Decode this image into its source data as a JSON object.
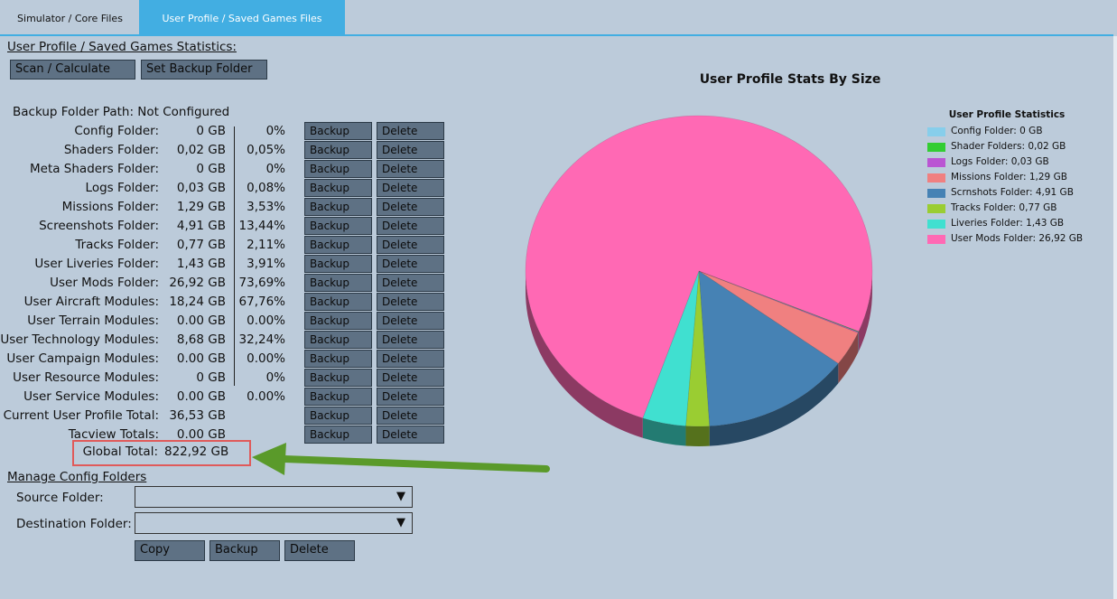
{
  "tabs": [
    {
      "label": "Simulator / Core Files",
      "active": false
    },
    {
      "label": "User Profile / Saved Games Files",
      "active": true
    }
  ],
  "stats_section": {
    "title": "User Profile / Saved Games Statistics:",
    "scan_button": "Scan / Calculate",
    "backup_folder_button": "Set Backup Folder",
    "backup_path": "Backup Folder Path: Not Configured",
    "backup_label": "Backup",
    "delete_label": "Delete",
    "rows": [
      {
        "label": "Config Folder:",
        "size": "0 GB",
        "pct": "0%"
      },
      {
        "label": "Shaders Folder:",
        "size": "0,02 GB",
        "pct": "0,05%"
      },
      {
        "label": "Meta Shaders Folder:",
        "size": "0 GB",
        "pct": "0%"
      },
      {
        "label": "Logs Folder:",
        "size": "0,03 GB",
        "pct": "0,08%"
      },
      {
        "label": "Missions Folder:",
        "size": "1,29 GB",
        "pct": "3,53%"
      },
      {
        "label": "Screenshots Folder:",
        "size": "4,91 GB",
        "pct": "13,44%"
      },
      {
        "label": "Tracks Folder:",
        "size": "0,77 GB",
        "pct": "2,11%"
      },
      {
        "label": "User Liveries Folder:",
        "size": "1,43 GB",
        "pct": "3,91%"
      },
      {
        "label": "User Mods Folder:",
        "size": "26,92 GB",
        "pct": "73,69%"
      },
      {
        "label": "User Aircraft Modules:",
        "size": "18,24 GB",
        "pct": "67,76%"
      },
      {
        "label": "User Terrain Modules:",
        "size": "0.00 GB",
        "pct": "0.00%"
      },
      {
        "label": "User Technology Modules:",
        "size": "8,68 GB",
        "pct": "32,24%"
      },
      {
        "label": "User Campaign Modules:",
        "size": "0.00 GB",
        "pct": "0.00%"
      },
      {
        "label": "User Resource Modules:",
        "size": "0 GB",
        "pct": "0%"
      },
      {
        "label": "User Service Modules:",
        "size": "0.00 GB",
        "pct": "0.00%"
      },
      {
        "label": "Current User Profile Total:",
        "size": "36,53 GB",
        "pct": ""
      },
      {
        "label": "Tacview Totals:",
        "size": "0.00 GB",
        "pct": ""
      }
    ],
    "global_total_label": "Global Total:",
    "global_total_value": "822,92 GB"
  },
  "manage_section": {
    "title": "Manage Config Folders",
    "source_label": "Source Folder:",
    "source_value": "",
    "destination_label": "Destination Folder:",
    "destination_value": "",
    "copy_button": "Copy",
    "backup_button": "Backup",
    "delete_button": "Delete"
  },
  "chart_data": {
    "type": "pie",
    "title": "User Profile Stats By Size",
    "legend_title": "User Profile Statistics",
    "legend_position": "right",
    "slices": [
      {
        "label": "Config Folder: 0 GB",
        "value": 0,
        "color": "#87ceeb"
      },
      {
        "label": "Shader Folders: 0,02 GB",
        "value": 0.02,
        "color": "#32cd32"
      },
      {
        "label": "Logs Folder: 0,03 GB",
        "value": 0.03,
        "color": "#ba55d3"
      },
      {
        "label": "Missions Folder: 1,29 GB",
        "value": 1.29,
        "color": "#f08080"
      },
      {
        "label": "Scrnshots Folder: 4,91 GB",
        "value": 4.91,
        "color": "#4682b4"
      },
      {
        "label": "Tracks Folder: 0,77 GB",
        "value": 0.77,
        "color": "#9acd32"
      },
      {
        "label": "Liveries Folder: 1,43 GB",
        "value": 1.43,
        "color": "#40e0d0"
      },
      {
        "label": "User Mods Folder: 26,92 GB",
        "value": 26.92,
        "color": "#ff69b4"
      }
    ]
  }
}
